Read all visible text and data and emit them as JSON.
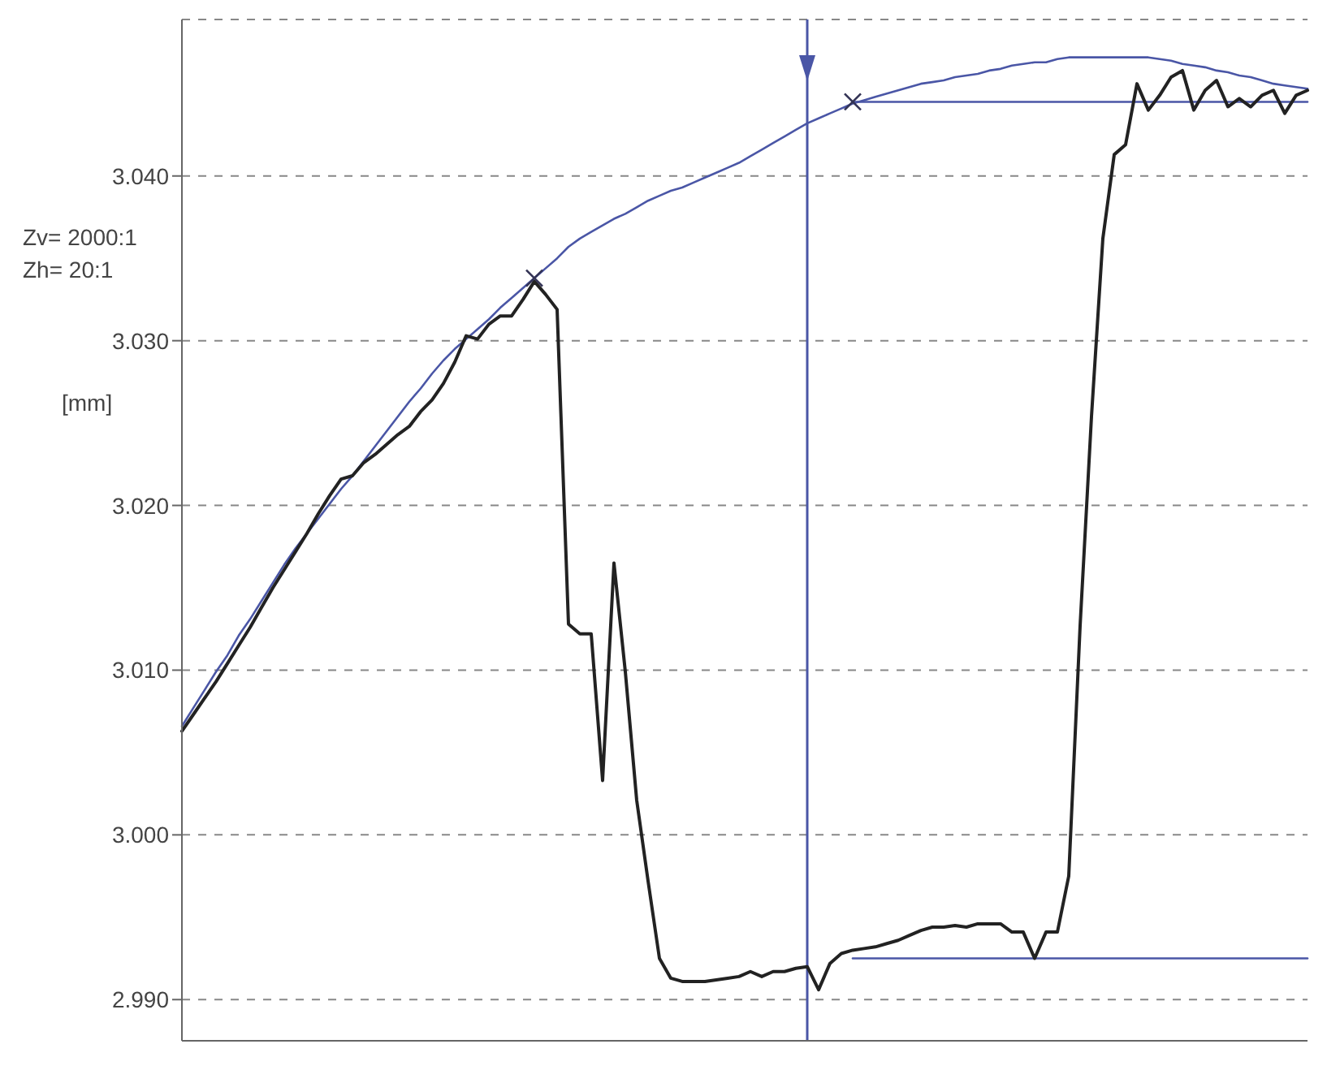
{
  "chart_data": {
    "type": "line",
    "ylabel": "[mm]",
    "annotations": [
      "Zv= 2000:1",
      "Zh= 20:1"
    ],
    "categories": [
      null,
      null,
      null,
      null,
      null,
      null,
      null,
      null,
      null,
      null,
      null,
      null,
      null,
      null,
      null,
      null,
      null,
      null,
      null,
      null,
      null,
      null,
      null,
      null,
      null,
      null,
      null,
      null,
      null,
      null,
      null,
      null,
      null,
      null,
      null,
      null,
      null,
      null,
      null,
      null,
      null,
      null,
      null,
      null,
      null,
      null,
      null,
      null,
      null,
      null,
      null,
      null,
      null,
      null,
      null,
      null,
      null,
      null,
      null,
      null,
      null,
      null,
      null,
      null,
      null,
      null,
      null,
      null,
      null,
      null,
      null,
      null,
      null,
      null,
      null,
      null,
      null,
      null,
      null,
      null,
      null,
      null,
      null,
      null,
      null,
      null,
      null,
      null,
      null,
      null,
      null,
      null,
      null,
      null,
      null,
      null,
      null,
      null,
      null,
      null
    ],
    "ylim": [
      2.9875,
      3.0495
    ],
    "yticks": [
      {
        "value": 2.99,
        "label": "2.990"
      },
      {
        "value": 3.0,
        "label": "3.000"
      },
      {
        "value": 3.01,
        "label": "3.010"
      },
      {
        "value": 3.02,
        "label": "3.020"
      },
      {
        "value": 3.03,
        "label": "3.030"
      },
      {
        "value": 3.04,
        "label": "3.040"
      }
    ],
    "grid": "y",
    "tick_labels": "y",
    "marker": "none",
    "line_style": "solid",
    "series": [
      {
        "color": "#4a56a6",
        "values": [
          3.0066,
          3.0077,
          3.0088,
          3.0099,
          3.0109,
          3.0121,
          3.0131,
          3.0142,
          3.0153,
          3.0164,
          3.0174,
          3.0183,
          3.0192,
          3.0201,
          3.021,
          3.0218,
          3.0227,
          3.0236,
          3.0245,
          3.0254,
          3.0263,
          3.0271,
          3.028,
          3.0288,
          3.0295,
          3.0301,
          3.0307,
          3.0313,
          3.032,
          3.0326,
          3.0332,
          3.0338,
          3.0344,
          3.035,
          3.0357,
          3.0362,
          3.0366,
          3.037,
          3.0374,
          3.0377,
          3.0381,
          3.0385,
          3.0388,
          3.0391,
          3.0393,
          3.0396,
          3.0399,
          3.0402,
          3.0405,
          3.0408,
          3.0412,
          3.0416,
          3.042,
          3.0424,
          3.0428,
          3.0432,
          3.0435,
          3.0438,
          3.0441,
          3.0444,
          3.0446,
          3.0448,
          3.045,
          3.0452,
          3.0454,
          3.0456,
          3.0457,
          3.0458,
          3.046,
          3.0461,
          3.0462,
          3.0464,
          3.0465,
          3.0467,
          3.0468,
          3.0469,
          3.0469,
          3.0471,
          3.0472,
          3.0472,
          3.0472,
          3.0472,
          3.0472,
          3.0472,
          3.0472,
          3.0472,
          3.0471,
          3.047,
          3.0468,
          3.0467,
          3.0466,
          3.0464,
          3.0463,
          3.0461,
          3.046,
          3.0458,
          3.0456,
          3.0455,
          3.0454,
          3.0453
        ]
      },
      {
        "color": "#4a56a6",
        "values": [
          null,
          null,
          null,
          null,
          null,
          null,
          null,
          null,
          null,
          null,
          null,
          null,
          null,
          null,
          null,
          null,
          null,
          null,
          null,
          null,
          null,
          null,
          null,
          null,
          null,
          null,
          null,
          null,
          null,
          null,
          null,
          null,
          null,
          null,
          null,
          null,
          null,
          null,
          null,
          null,
          null,
          null,
          null,
          null,
          null,
          null,
          null,
          null,
          null,
          null,
          null,
          null,
          null,
          null,
          null,
          null,
          null,
          null,
          null,
          3.0445,
          3.0445,
          3.0445,
          3.0445,
          3.0445,
          3.0445,
          3.0445,
          3.0445,
          3.0445,
          3.0445,
          3.0445,
          3.0445,
          3.0445,
          3.0445,
          3.0445,
          3.0445,
          3.0445,
          3.0445,
          3.0445,
          3.0445,
          3.0445,
          3.0445,
          3.0445,
          3.0445,
          3.0445,
          3.0445,
          3.0445,
          3.0445,
          3.0445,
          3.0445,
          3.0445,
          3.0445,
          3.0445,
          3.0445,
          3.0445,
          3.0445,
          3.0445,
          3.0445,
          3.0445,
          3.0445,
          3.0445
        ]
      },
      {
        "color": "#4a56a6",
        "values": [
          null,
          null,
          null,
          null,
          null,
          null,
          null,
          null,
          null,
          null,
          null,
          null,
          null,
          null,
          null,
          null,
          null,
          null,
          null,
          null,
          null,
          null,
          null,
          null,
          null,
          null,
          null,
          null,
          null,
          null,
          null,
          null,
          null,
          null,
          null,
          null,
          null,
          null,
          null,
          null,
          null,
          null,
          null,
          null,
          null,
          null,
          null,
          null,
          null,
          null,
          null,
          null,
          null,
          null,
          null,
          null,
          null,
          null,
          null,
          2.9925,
          2.9925,
          2.9925,
          2.9925,
          2.9925,
          2.9925,
          2.9925,
          2.9925,
          2.9925,
          2.9925,
          2.9925,
          2.9925,
          2.9925,
          2.9925,
          2.9925,
          2.9925,
          2.9925,
          2.9925,
          2.9925,
          2.9925,
          2.9925,
          2.9925,
          2.9925,
          2.9925,
          2.9925,
          2.9925,
          2.9925,
          2.9925,
          2.9925,
          2.9925,
          2.9925,
          2.9925,
          2.9925,
          2.9925,
          2.9925,
          2.9925,
          2.9925,
          2.9925,
          2.9925,
          2.9925,
          2.9925
        ]
      },
      {
        "color": "#222222",
        "values": [
          3.0063,
          3.0073,
          3.0083,
          3.0093,
          3.0104,
          3.0115,
          3.0126,
          3.0138,
          3.015,
          3.0161,
          3.0172,
          3.0183,
          3.0195,
          3.0206,
          3.0216,
          3.0218,
          3.0226,
          3.0231,
          3.0237,
          3.0243,
          3.0248,
          3.0257,
          3.0264,
          3.0274,
          3.0287,
          3.0303,
          3.0301,
          3.031,
          3.0315,
          3.0315,
          3.0325,
          3.0336,
          3.0328,
          3.0319,
          3.0128,
          3.0122,
          3.0122,
          3.0033,
          3.0165,
          3.0099,
          3.0021,
          2.9972,
          2.9925,
          2.9913,
          2.9911,
          2.9911,
          2.9911,
          2.9912,
          2.9913,
          2.9914,
          2.9917,
          2.9914,
          2.9917,
          2.9917,
          2.9919,
          2.992,
          2.9906,
          2.9922,
          2.9928,
          2.993,
          2.9931,
          2.9932,
          2.9934,
          2.9936,
          2.9939,
          2.9942,
          2.9944,
          2.9944,
          2.9945,
          2.9944,
          2.9946,
          2.9946,
          2.9946,
          2.9941,
          2.9941,
          2.9925,
          2.9941,
          2.9941,
          2.9975,
          3.0127,
          3.0254,
          3.0362,
          3.0413,
          3.0419,
          3.0456,
          3.044,
          3.0449,
          3.046,
          3.0464,
          3.044,
          3.0452,
          3.0458,
          3.0442,
          3.0447,
          3.0442,
          3.0449,
          3.0452,
          3.0438,
          3.0449,
          3.0452
        ]
      },
      {
        "type": "scatter",
        "color": "#333355",
        "marker": "cross",
        "values": [
          null,
          null,
          null,
          null,
          null,
          null,
          null,
          null,
          null,
          null,
          null,
          null,
          null,
          null,
          null,
          null,
          null,
          null,
          null,
          null,
          null,
          null,
          null,
          null,
          null,
          null,
          null,
          null,
          null,
          null,
          null,
          3.0338,
          null,
          null,
          null,
          null,
          null,
          null,
          null,
          null,
          null,
          null,
          null,
          null,
          null,
          null,
          null,
          null,
          null,
          null,
          null,
          null,
          null,
          null,
          null,
          null,
          null,
          null,
          null,
          3.0445,
          null,
          null,
          null,
          null,
          null,
          null,
          null,
          null,
          null,
          null,
          null,
          null,
          null,
          null,
          null,
          null,
          null,
          null,
          null,
          null,
          null,
          null,
          null,
          null,
          null,
          null,
          null,
          null,
          null,
          null,
          null,
          null,
          null,
          null,
          null,
          null,
          null,
          null,
          null,
          null
        ]
      }
    ]
  }
}
